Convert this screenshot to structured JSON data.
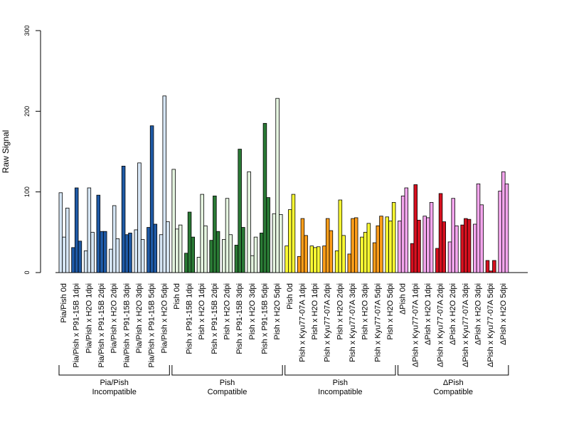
{
  "chart_data": {
    "type": "bar",
    "ylabel": "Raw Signal",
    "ylim": [
      0,
      300
    ],
    "yticks": [
      0,
      100,
      200,
      300
    ],
    "grid": false,
    "categories": [
      "Pia/Pish 0d",
      "Pia/Pish x P91-15B 1dpi",
      "Pia/Pish x H2O 1dpi",
      "Pia/Pish x P91-15B 2dpi",
      "Pia/Pish x H2O 2dpi",
      "Pia/Pish x P91-15B 3dpi",
      "Pia/Pish x H2O 3dpi",
      "Pia/Pish x P91-15B 5dpi",
      "Pia/Pish x H2O 5dpi",
      "Pish 0d",
      "Pish x P91-15B 1dpi",
      "Pish x H2O 1dpi",
      "Pish x P91-15B 2dpi",
      "Pish x H2O 2dpi",
      "Pish x P91-15B 3dpi",
      "Pish x H2O 3dpi",
      "Pish x P91-15B 5dpi",
      "Pish x H2O 5dpi",
      "Pish 0d",
      "Pish x Kyu77-07A 1dpi",
      "Pish x H2O 1dpi",
      "Pish x Kyu77-07A 2dpi",
      "Pish x H2O 2dpi",
      "Pish x Kyu77-07A 3dpi",
      "Pish x H2O 3dpi",
      "Pish x Kyu77-07A 5dpi",
      "Pish x H2O 5dpi",
      "ΔPish 0d",
      "ΔPish x Kyu77-07A 1dpi",
      "ΔPish x H2O 1dpi",
      "ΔPish x Kyu77-07A 2dpi",
      "ΔPish x H2O 2dpi",
      "ΔPish x Kyu77-07A 3dpi",
      "ΔPish x H2O 3dpi",
      "ΔPish x Kyu77-07A 5dpi",
      "ΔPish x H2O 5dpi"
    ],
    "groups": [
      {
        "label": [
          "Pia/Pish",
          "Incompatible"
        ],
        "start": 0,
        "end": 8,
        "colors": {
          "control": "#d6e6f5",
          "treated": "#1f5aa6"
        }
      },
      {
        "label": [
          "Pish",
          "Compatible"
        ],
        "start": 9,
        "end": 17,
        "colors": {
          "control": "#e5f5e0",
          "treated": "#2a7a35"
        }
      },
      {
        "label": [
          "Pish",
          "Incompatible"
        ],
        "start": 18,
        "end": 26,
        "colors": {
          "control": "#ffff33",
          "treated": "#ff9e1a"
        }
      },
      {
        "label": [
          "ΔPish",
          "Compatible"
        ],
        "start": 27,
        "end": 35,
        "colors": {
          "control": "#f4a6ee",
          "treated": "#d7101f"
        }
      }
    ],
    "values": [
      [
        99,
        44,
        80
      ],
      [
        31,
        105,
        39
      ],
      [
        27,
        105,
        50
      ],
      [
        96,
        51,
        51
      ],
      [
        29,
        83,
        42
      ],
      [
        132,
        47,
        49
      ],
      [
        53,
        136,
        41
      ],
      [
        56,
        182,
        60
      ],
      [
        47,
        219,
        63
      ],
      [
        128,
        54,
        59
      ],
      [
        24,
        75,
        44
      ],
      [
        19,
        97,
        58
      ],
      [
        40,
        95,
        51
      ],
      [
        41,
        92,
        47
      ],
      [
        34,
        153,
        56
      ],
      [
        125,
        21,
        44
      ],
      [
        49,
        185,
        93
      ],
      [
        73,
        216,
        72
      ],
      [
        33,
        78,
        97
      ],
      [
        20,
        67,
        46
      ],
      [
        33,
        31,
        32
      ],
      [
        33,
        67,
        52
      ],
      [
        27,
        90,
        46
      ],
      [
        23,
        67,
        68
      ],
      [
        44,
        50,
        61
      ],
      [
        37,
        58,
        70
      ],
      [
        69,
        64,
        87
      ],
      [
        64,
        95,
        105
      ],
      [
        36,
        109,
        65
      ],
      [
        70,
        68,
        87
      ],
      [
        30,
        98,
        63
      ],
      [
        38,
        92,
        58
      ],
      [
        59,
        67,
        66
      ],
      [
        60,
        110,
        84
      ],
      [
        15,
        2,
        15
      ],
      [
        101,
        125,
        110
      ]
    ]
  }
}
